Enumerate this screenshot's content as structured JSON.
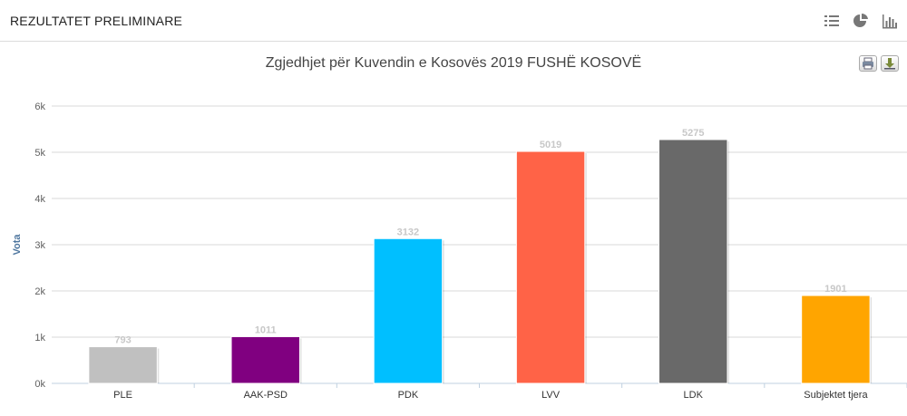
{
  "header": {
    "title": "REZULTATET PRELIMINARE",
    "icons": [
      "list-icon",
      "pie-chart-icon",
      "bar-chart-icon"
    ]
  },
  "chart_buttons": [
    "print-icon",
    "download-icon"
  ],
  "chart_data": {
    "type": "bar",
    "title": "Zgjedhjet për Kuvendin e Kosovës 2019 FUSHË KOSOVË",
    "xlabel": "",
    "ylabel": "Vota",
    "ylim": [
      0,
      6000
    ],
    "yticks": [
      0,
      1000,
      2000,
      3000,
      4000,
      5000,
      6000
    ],
    "ytick_labels": [
      "0k",
      "1k",
      "2k",
      "3k",
      "4k",
      "5k",
      "6k"
    ],
    "categories": [
      "PLE",
      "AAK-PSD",
      "PDK",
      "LVV",
      "LDK",
      "Subjektet tjera"
    ],
    "values": [
      793,
      1011,
      3132,
      5019,
      5275,
      1901
    ],
    "colors": [
      "#c0c0c0",
      "#800080",
      "#00bfff",
      "#ff6347",
      "#696969",
      "#ffa500"
    ],
    "grid": true,
    "legend": "none"
  }
}
